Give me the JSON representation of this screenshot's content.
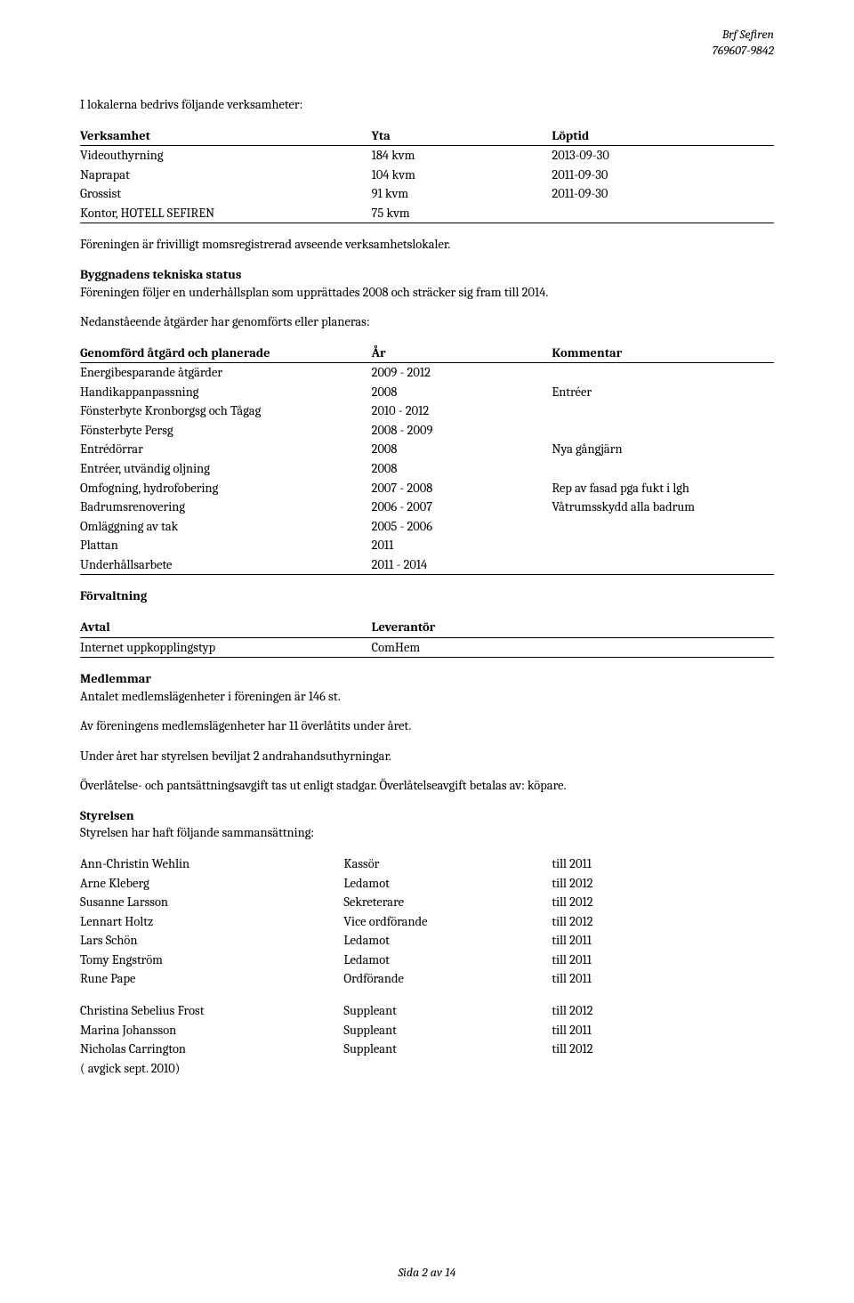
{
  "header": {
    "org_name": "Brf Sefiren",
    "org_number": "769607-9842"
  },
  "lokaler": {
    "intro": "I lokalerna bedrivs följande verksamheter:",
    "head": {
      "c1": "Verksamhet",
      "c2": "Yta",
      "c3": "Löptid"
    },
    "rows": [
      {
        "c1": "Videouthyrning",
        "c2": "184 kvm",
        "c3": "2013-09-30"
      },
      {
        "c1": "Naprapat",
        "c2": "104 kvm",
        "c3": "2011-09-30"
      },
      {
        "c1": "Grossist",
        "c2": "91 kvm",
        "c3": "2011-09-30"
      },
      {
        "c1": "Kontor, HOTELL SEFIREN",
        "c2": "75 kvm",
        "c3": ""
      }
    ],
    "note": "Föreningen är frivilligt momsregistrerad avseende verksamhetslokaler."
  },
  "byggnad": {
    "heading": "Byggnadens tekniska status",
    "text": "Föreningen följer en underhållsplan som upprättades 2008 och sträcker sig fram till 2014.",
    "note": "Nedanståeende åtgärder har genomförts eller planeras:"
  },
  "actions": {
    "head": {
      "c1": "Genomförd åtgärd och planerade",
      "c2": "År",
      "c3": "Kommentar"
    },
    "rows": [
      {
        "c1": "Energibesparande åtgärder",
        "c2": "2009 - 2012",
        "c3": ""
      },
      {
        "c1": "Handikappanpassning",
        "c2": "2008",
        "c3": "Entréer"
      },
      {
        "c1": "Fönsterbyte Kronborgsg och Tågag",
        "c2": "2010 - 2012",
        "c3": ""
      },
      {
        "c1": "Fönsterbyte Persg",
        "c2": "2008 - 2009",
        "c3": ""
      },
      {
        "c1": "Entrédörrar",
        "c2": "2008",
        "c3": "Nya gångjärn"
      },
      {
        "c1": "Entréer, utvändig oljning",
        "c2": "2008",
        "c3": ""
      },
      {
        "c1": "Omfogning, hydrofobering",
        "c2": "2007 - 2008",
        "c3": "Rep av fasad pga fukt i lgh"
      },
      {
        "c1": "Badrumsrenovering",
        "c2": "2006 - 2007",
        "c3": "Våtrumsskydd alla badrum"
      },
      {
        "c1": "Omläggning av tak",
        "c2": "2005 - 2006",
        "c3": ""
      },
      {
        "c1": "Plattan",
        "c2": "2011",
        "c3": ""
      },
      {
        "c1": "Underhållsarbete",
        "c2": "2011 - 2014",
        "c3": ""
      }
    ]
  },
  "forvaltning": {
    "heading": "Förvaltning",
    "head": {
      "c1": "Avtal",
      "c2": "Leverantör"
    },
    "rows": [
      {
        "c1": "Internet uppkopplingstyp",
        "c2": "ComHem"
      }
    ]
  },
  "medlemmar": {
    "heading": "Medlemmar",
    "p1": "Antalet medlemslägenheter i föreningen är 146 st.",
    "p2": "Av föreningens medlemslägenheter har 11 överlåtits under året.",
    "p3": "Under året har styrelsen beviljat 2 andrahandsuthyrningar.",
    "p4": "Överlåtelse- och pantsättningsavgift tas ut enligt stadgar. Överlåtelseavgift betalas av: köpare."
  },
  "styrelsen": {
    "heading": "Styrelsen",
    "intro": "Styrelsen har haft följande sammansättning:",
    "members": [
      {
        "name": "Ann-Christin Wehlin",
        "role": "Kassör",
        "term": "till 2011"
      },
      {
        "name": "Arne Kleberg",
        "role": "Ledamot",
        "term": "till 2012"
      },
      {
        "name": "Susanne Larsson",
        "role": "Sekreterare",
        "term": "till 2012"
      },
      {
        "name": "Lennart Holtz",
        "role": "Vice ordförande",
        "term": "till 2012"
      },
      {
        "name": "Lars Schön",
        "role": "Ledamot",
        "term": "till 2011"
      },
      {
        "name": "Tomy Engström",
        "role": "Ledamot",
        "term": "till 2011"
      },
      {
        "name": "Rune Pape",
        "role": "Ordförande",
        "term": "till 2011"
      }
    ],
    "deputies": [
      {
        "name": "Christina Sebelius Frost",
        "role": "Suppleant",
        "term": "till 2012"
      },
      {
        "name": "Marina Johansson",
        "role": "Suppleant",
        "term": "till 2011"
      },
      {
        "name": "Nicholas Carrington",
        "role": "Suppleant",
        "term": "till 2012"
      }
    ],
    "note": "( avgick sept. 2010)"
  },
  "footer": {
    "text": "Sida 2 av 14"
  }
}
